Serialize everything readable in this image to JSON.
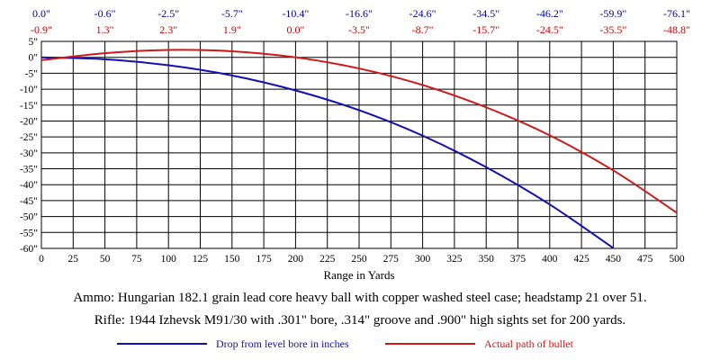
{
  "chart_data": {
    "type": "line",
    "title": "",
    "xlabel": "Range in Yards",
    "ylabel": "",
    "xlim": [
      0,
      500
    ],
    "ylim": [
      -60,
      5
    ],
    "grid": true,
    "legend_position": "bottom",
    "x_ticks": [
      "0",
      "25",
      "50",
      "75",
      "100",
      "125",
      "150",
      "175",
      "200",
      "225",
      "250",
      "275",
      "300",
      "325",
      "350",
      "375",
      "400",
      "425",
      "450",
      "475",
      "500"
    ],
    "y_ticks": [
      "5\"",
      "0\"",
      "-5\"",
      "-10\"",
      "-15\"",
      "-20\"",
      "-25\"",
      "-30\"",
      "-35\"",
      "-40\"",
      "-45\"",
      "-50\"",
      "-55\"",
      "-60\""
    ],
    "top_rows": {
      "drop_labels": [
        "0.0\"",
        "-0.6\"",
        "-2.5\"",
        "-5.7\"",
        "-10.4\"",
        "-16.6\"",
        "-24.6\"",
        "-34.5\"",
        "-46.2\"",
        "-59.9\"",
        "-76.1\""
      ],
      "path_labels": [
        "-0.9\"",
        "1.3\"",
        "2.3\"",
        "1.9\"",
        "0.0\"",
        "-3.5\"",
        "-8.7\"",
        "-15.7\"",
        "-24.5\"",
        "-35.5\"",
        "-48.8\""
      ],
      "drop_color": "#000099",
      "path_color": "#cc0000"
    },
    "series": [
      {
        "name": "Drop from level bore in inches",
        "color": "#1010b0",
        "x": [
          0,
          50,
          100,
          150,
          200,
          250,
          300,
          350,
          400,
          450
        ],
        "y": [
          0.0,
          -0.6,
          -2.5,
          -5.7,
          -10.4,
          -16.6,
          -24.6,
          -34.5,
          -46.2,
          -59.9
        ]
      },
      {
        "name": "Actual path of bullet",
        "color": "#d01818",
        "x": [
          0,
          50,
          100,
          150,
          200,
          250,
          300,
          350,
          400,
          450,
          500
        ],
        "y": [
          -0.9,
          1.3,
          2.3,
          1.9,
          0.0,
          -3.5,
          -8.7,
          -15.7,
          -24.5,
          -35.5,
          -48.8
        ]
      }
    ]
  },
  "captions": {
    "ammo": "Ammo:  Hungarian 182.1 grain lead core heavy ball with copper washed steel case; headstamp 21 over 51.",
    "rifle": "Rifle:  1944 Izhevsk M91/30 with .301\" bore, .314\" groove and .900\" high sights set for 200 yards."
  }
}
